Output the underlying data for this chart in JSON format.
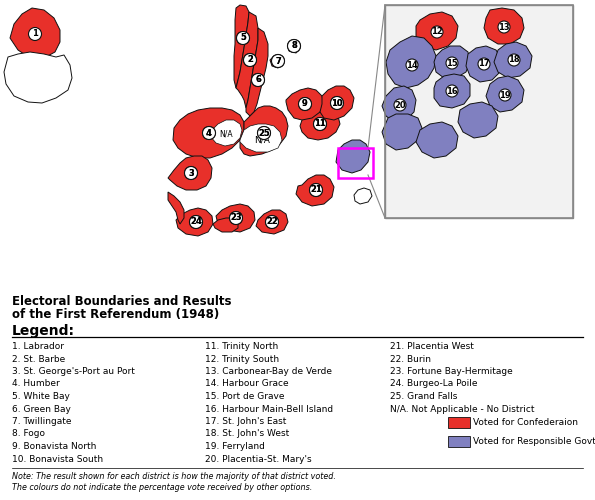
{
  "red_color": "#E8302A",
  "blue_color": "#8080C0",
  "white_color": "#FFFFFF",
  "outline_color": "#111111",
  "bg_color": "#FFFFFF",
  "legend_title": "Legend:",
  "legend_col1": [
    "1. Labrador",
    "2. St. Barbe",
    "3. St. George's-Port au Port",
    "4. Humber",
    "5. White Bay",
    "6. Green Bay",
    "7. Twillingate",
    "8. Fogo",
    "9. Bonavista North",
    "10. Bonavista South"
  ],
  "legend_col2": [
    "11. Trinity North",
    "12. Trinity South",
    "13. Carbonear-Bay de Verde",
    "14. Harbour Grace",
    "15. Port de Grave",
    "16. Harbour Main-Bell Island",
    "17. St. John's East",
    "18. St. John's West",
    "19. Ferryland",
    "20. Placentia-St. Mary's"
  ],
  "legend_col3": [
    "21. Placentia West",
    "22. Burin",
    "23. Fortune Bay-Hermitage",
    "24. Burgeo-La Poile",
    "25. Grand Falls",
    "N/A. Not Applicable - No District"
  ],
  "color_legend": [
    {
      "color": "#E8302A",
      "label": "Voted for Confederaion"
    },
    {
      "color": "#8080C0",
      "label": "Voted for Responsible Govt."
    }
  ],
  "note_line1": "Note: The result shown for each district is how the majority of that district voted.",
  "note_line2": "The colours do not indicate the percentage vote received by other options.",
  "map_title_line1": "Electoral Boundaries and Results",
  "map_title_line2": "of the First Referendum (1948)"
}
